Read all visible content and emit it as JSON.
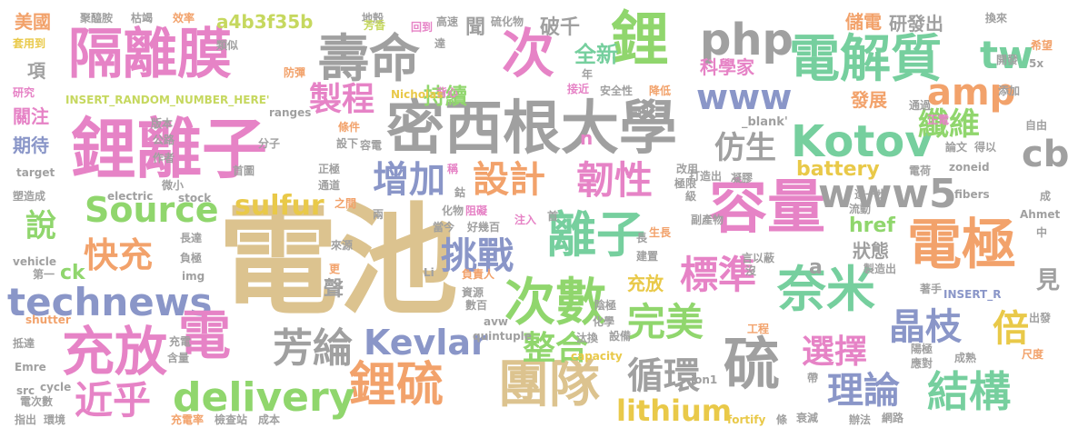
{
  "palette": {
    "tan": "#dcc38f",
    "pink": "#e683c6",
    "green": "#90d66d",
    "teal": "#76cf9e",
    "gray": "#a0a0a0",
    "orange": "#f2a26b",
    "blue": "#8a96c8",
    "lime": "#c6d85f",
    "yellow": "#e9c949"
  },
  "words": {
    "w001": "電池",
    "w002": "鋰離子",
    "w003": "密西根大學",
    "w004": "隔離膜",
    "w005": "容量",
    "w006": "鋰",
    "w007": "電解質",
    "w008": "壽命",
    "w009": "次",
    "w010": "電極",
    "w011": "充放",
    "w012": "團隊",
    "w013": "硫",
    "w014": "鋰硫",
    "w015": "Kotov",
    "w016": "次數",
    "w017": "technews",
    "w018": "奈米",
    "w019": "離子",
    "w020": "delivery",
    "w021": "www5",
    "w022": "php",
    "w023": "www",
    "w024": "電",
    "w025": "Source",
    "w026": "結構",
    "w027": "amp",
    "w028": "芳綸",
    "w029": "標準",
    "w030": "完美",
    "w031": "Kevlar",
    "w032": "循環",
    "w033": "理論",
    "w034": "近乎",
    "w035": "韌性",
    "w036": "增加",
    "w037": "設計",
    "w038": "挑戰",
    "w039": "快充",
    "w040": "整合",
    "w041": "晶枝",
    "w042": "選擇",
    "w043": "lithium",
    "w044": "倍",
    "w045": "製程",
    "w046": "仿生",
    "w047": "纖維",
    "w048": "cb",
    "w049": "tw",
    "w050": "sulfur",
    "w051": "battery",
    "w052": "說",
    "w053": "a4b3f35b",
    "w054": "持續",
    "w055": "全新",
    "w056": "破千",
    "w057": "研發出",
    "w058": "儲電",
    "w059": "科學家",
    "w060": "發展",
    "w061": "狀態",
    "w062": "href",
    "w063": "充放",
    "w064": "ck",
    "w065": "美國",
    "w066": "項",
    "w067": "關注",
    "w068": "期待",
    "w069": "聲",
    "w070": "a",
    "w071": "見",
    "w072": "聞",
    "w073": "n",
    "w074": "INSERT_RANDOM_NUMBER_HERE'",
    "w075": "INSERT_R",
    "w076": "_blank'",
    "w077": "聚醯胺",
    "w078": "枯竭",
    "w079": "效率",
    "w080": "地殼",
    "w081": "芳香",
    "w082": "回到",
    "w083": "高速",
    "w084": "硫化物",
    "w085": "換來",
    "w086": "套用到",
    "w087": "類似",
    "w088": "防彈",
    "w089": "達",
    "w090": "背心",
    "w091": "Nicholas",
    "w092": "接近",
    "w093": "安全性",
    "w094": "降低",
    "w095": "年",
    "w096": "希望",
    "w097": "5x",
    "w098": "開發",
    "w099": "添加",
    "w100": "研究",
    "w101": "版本",
    "w102": "條件",
    "w103": "ranges",
    "w104": "環保",
    "w105": "通過",
    "w106": "正電",
    "w107": "自由",
    "w108": "公路",
    "w109": "作者",
    "w110": "分子",
    "w111": "設下",
    "w112": "容電",
    "w113": "論文",
    "w114": "得以",
    "w115": "target",
    "w116": "首圖",
    "w117": "正極",
    "w118": "改用",
    "w119": "打造出",
    "w120": "凝膠",
    "w121": "電荷",
    "w122": "zoneid",
    "w123": "塑造成",
    "w124": "electric",
    "w125": "微小",
    "w126": "stock",
    "w127": "通道",
    "w128": "稱",
    "w129": "鈷",
    "w130": "極限",
    "w131": "級",
    "w132": "進一步",
    "w133": "fibers",
    "w134": "成",
    "w135": "之間",
    "w136": "兩",
    "w137": "化物",
    "w138": "阻礙",
    "w139": "注入",
    "w140": "首",
    "w141": "流動",
    "w142": "Ahmet",
    "w143": "當今",
    "w144": "好幾百",
    "w145": "副產物",
    "w146": "長達",
    "w147": "長",
    "w148": "生長",
    "w149": "建置",
    "w150": "言以蔽",
    "w151": "中",
    "w152": "vehicle",
    "w153": "第一",
    "w154": "負極",
    "w155": "來源",
    "w156": "更",
    "w157": "img",
    "w158": "Li",
    "w159": "負責人",
    "w160": "沒",
    "w161": "製造出",
    "w162": "著手",
    "w163": "資源",
    "w164": "數百",
    "w165": "陰極",
    "w166": "化學",
    "w167": "工程",
    "w168": "出發",
    "w169": "shutter",
    "w170": "avw",
    "w171": "抵達",
    "w172": "充電",
    "w173": "含量",
    "w174": "quintuple",
    "w175": "汰換",
    "w176": "設備",
    "w177": "陽極",
    "w178": "應對",
    "w179": "尺度",
    "w180": "成熟",
    "w181": "Emre",
    "w182": "src",
    "w183": "cycle",
    "w184": "電次數",
    "w185": "capacity",
    "w186": "帶",
    "w187": "指出",
    "w188": "環境",
    "w189": "充電率",
    "w190": "檢查站",
    "w191": "成本",
    "w192": "fortify",
    "w193": "條",
    "w194": "衰減",
    "w195": "辦法",
    "w196": "網路",
    "w197": "ion1"
  }
}
